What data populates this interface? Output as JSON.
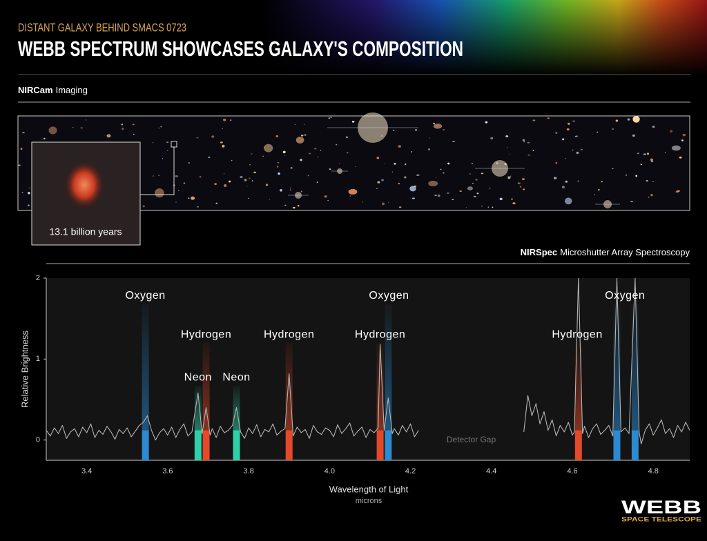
{
  "header": {
    "kicker": "DISTANT GALAXY BEHIND SMACS 0723",
    "title": "WEBB SPECTRUM SHOWCASES GALAXY'S COMPOSITION"
  },
  "imaging": {
    "instrument": "NIRCam",
    "label": "Imaging",
    "inset_label": "13.1 billion years"
  },
  "spectroscopy": {
    "instrument": "NIRSpec",
    "label": "Microshutter Array Spectroscopy"
  },
  "logo": {
    "name": "WEBB",
    "subtitle": "SPACE TELESCOPE"
  },
  "chart_data": {
    "type": "line",
    "xlabel": "Wavelength of Light",
    "xunit": "microns",
    "ylabel": "Relative Brightness",
    "xlim": [
      3.3,
      4.89
    ],
    "ylim": [
      -0.25,
      2
    ],
    "xticks": [
      3.4,
      3.6,
      3.8,
      {
        "value": 4.0,
        "label": "4.0"
      },
      4.2,
      4.4,
      4.6,
      4.8
    ],
    "yticks": [
      0,
      1,
      2
    ],
    "gap_label": {
      "text": "Detector Gap",
      "x": 4.35,
      "y": 0
    },
    "series": [
      {
        "color": "#b5b5b5",
        "x": [
          3.3,
          3.31,
          3.32,
          3.33,
          3.34,
          3.35,
          3.36,
          3.37,
          3.38,
          3.39,
          3.4,
          3.41,
          3.42,
          3.43,
          3.44,
          3.45,
          3.46,
          3.47,
          3.48,
          3.49,
          3.5,
          3.51,
          3.52,
          3.53,
          3.54,
          3.55,
          3.56,
          3.57,
          3.58,
          3.59,
          3.6,
          3.61,
          3.62,
          3.63,
          3.64,
          3.65,
          3.66,
          3.675,
          3.685,
          3.695,
          3.705,
          3.71,
          3.72,
          3.73,
          3.74,
          3.75,
          3.76,
          3.77,
          3.78,
          3.79,
          3.8,
          3.81,
          3.82,
          3.83,
          3.84,
          3.85,
          3.86,
          3.87,
          3.88,
          3.89,
          3.9,
          3.91,
          3.92,
          3.93,
          3.94,
          3.95,
          3.96,
          3.97,
          3.98,
          3.99,
          4.0,
          4.01,
          4.02,
          4.03,
          4.04,
          4.05,
          4.06,
          4.07,
          4.08,
          4.09,
          4.1,
          4.11,
          4.12,
          4.125,
          4.135,
          4.145,
          4.155,
          4.16,
          4.17,
          4.18,
          4.19,
          4.2,
          4.21,
          4.22,
          4.35,
          4.48,
          4.49,
          4.5,
          4.51,
          4.52,
          4.53,
          4.54,
          4.55,
          4.56,
          4.57,
          4.58,
          4.59,
          4.6,
          4.605,
          4.615,
          4.625,
          4.63,
          4.64,
          4.65,
          4.66,
          4.67,
          4.68,
          4.69,
          4.7,
          4.71,
          4.72,
          4.73,
          4.74,
          4.755,
          4.765,
          4.77,
          4.78,
          4.79,
          4.8,
          4.81,
          4.82,
          4.83,
          4.84,
          4.85,
          4.86,
          4.87,
          4.88,
          4.89
        ],
        "values": [
          0.12,
          0.05,
          0.15,
          0.08,
          0.18,
          0.02,
          0.1,
          0.14,
          0.04,
          0.16,
          0.09,
          0.2,
          0.03,
          0.12,
          0.07,
          0.17,
          0.1,
          0.01,
          0.13,
          0.08,
          0.15,
          0.04,
          0.11,
          0.18,
          0.22,
          0.3,
          0.12,
          0.0,
          0.09,
          0.14,
          0.06,
          0.16,
          0.03,
          0.13,
          0.2,
          0.05,
          0.1,
          0.58,
          0.08,
          0.4,
          0.06,
          0.14,
          0.03,
          0.17,
          0.09,
          0.12,
          0.18,
          0.4,
          0.1,
          0.02,
          0.15,
          0.08,
          0.19,
          0.04,
          0.13,
          0.1,
          0.2,
          0.06,
          0.11,
          0.14,
          0.82,
          0.05,
          0.16,
          0.09,
          0.13,
          0.02,
          0.18,
          0.1,
          0.07,
          0.15,
          0.12,
          0.04,
          0.19,
          0.08,
          0.14,
          0.21,
          0.05,
          0.11,
          0.16,
          0.03,
          0.13,
          0.09,
          0.15,
          1.18,
          0.12,
          0.52,
          0.08,
          0.14,
          0.06,
          0.18,
          0.1,
          0.2,
          0.04,
          0.12,
          null,
          0.1,
          0.55,
          0.3,
          0.45,
          0.2,
          0.35,
          0.12,
          0.25,
          0.05,
          0.18,
          0.1,
          0.22,
          0.06,
          0.1,
          2,
          0.08,
          0.17,
          0.03,
          0.14,
          0.2,
          0.07,
          0.12,
          0.18,
          0.05,
          2,
          0.1,
          0.15,
          0.08,
          2,
          0.1,
          -0.05,
          0.12,
          0.2,
          0.06,
          0.15,
          0.25,
          0.08,
          0.14,
          0.03,
          0.18,
          0.1,
          0.22,
          0.12
        ]
      }
    ],
    "elements": [
      {
        "name": "Oxygen",
        "color": "#2b8ad0",
        "label_y": 1.78
      },
      {
        "name": "Hydrogen",
        "color": "#e4492a",
        "label_y": 1.3
      },
      {
        "name": "Neon",
        "color": "#2fcfa9",
        "label_y": 0.77
      }
    ],
    "lines": [
      {
        "x": 3.545,
        "element": 0
      },
      {
        "x": 3.675,
        "element": 2
      },
      {
        "x": 3.695,
        "element": 1
      },
      {
        "x": 3.77,
        "element": 2
      },
      {
        "x": 3.9,
        "element": 1
      },
      {
        "x": 4.125,
        "element": 1
      },
      {
        "x": 4.145,
        "element": 0
      },
      {
        "x": 4.615,
        "element": 1
      },
      {
        "x": 4.71,
        "element": 0
      },
      {
        "x": 4.755,
        "element": 0
      }
    ],
    "labels": [
      {
        "x": 3.545,
        "element": 0
      },
      {
        "x": 3.695,
        "element": 1
      },
      {
        "x": 3.675,
        "element": 2
      },
      {
        "x": 3.77,
        "element": 2
      },
      {
        "x": 3.9,
        "element": 1
      },
      {
        "x": 4.147,
        "element": 0
      },
      {
        "x": 4.125,
        "element": 1
      },
      {
        "x": 4.612,
        "element": 1
      },
      {
        "x": 4.73,
        "element": 0
      }
    ]
  }
}
